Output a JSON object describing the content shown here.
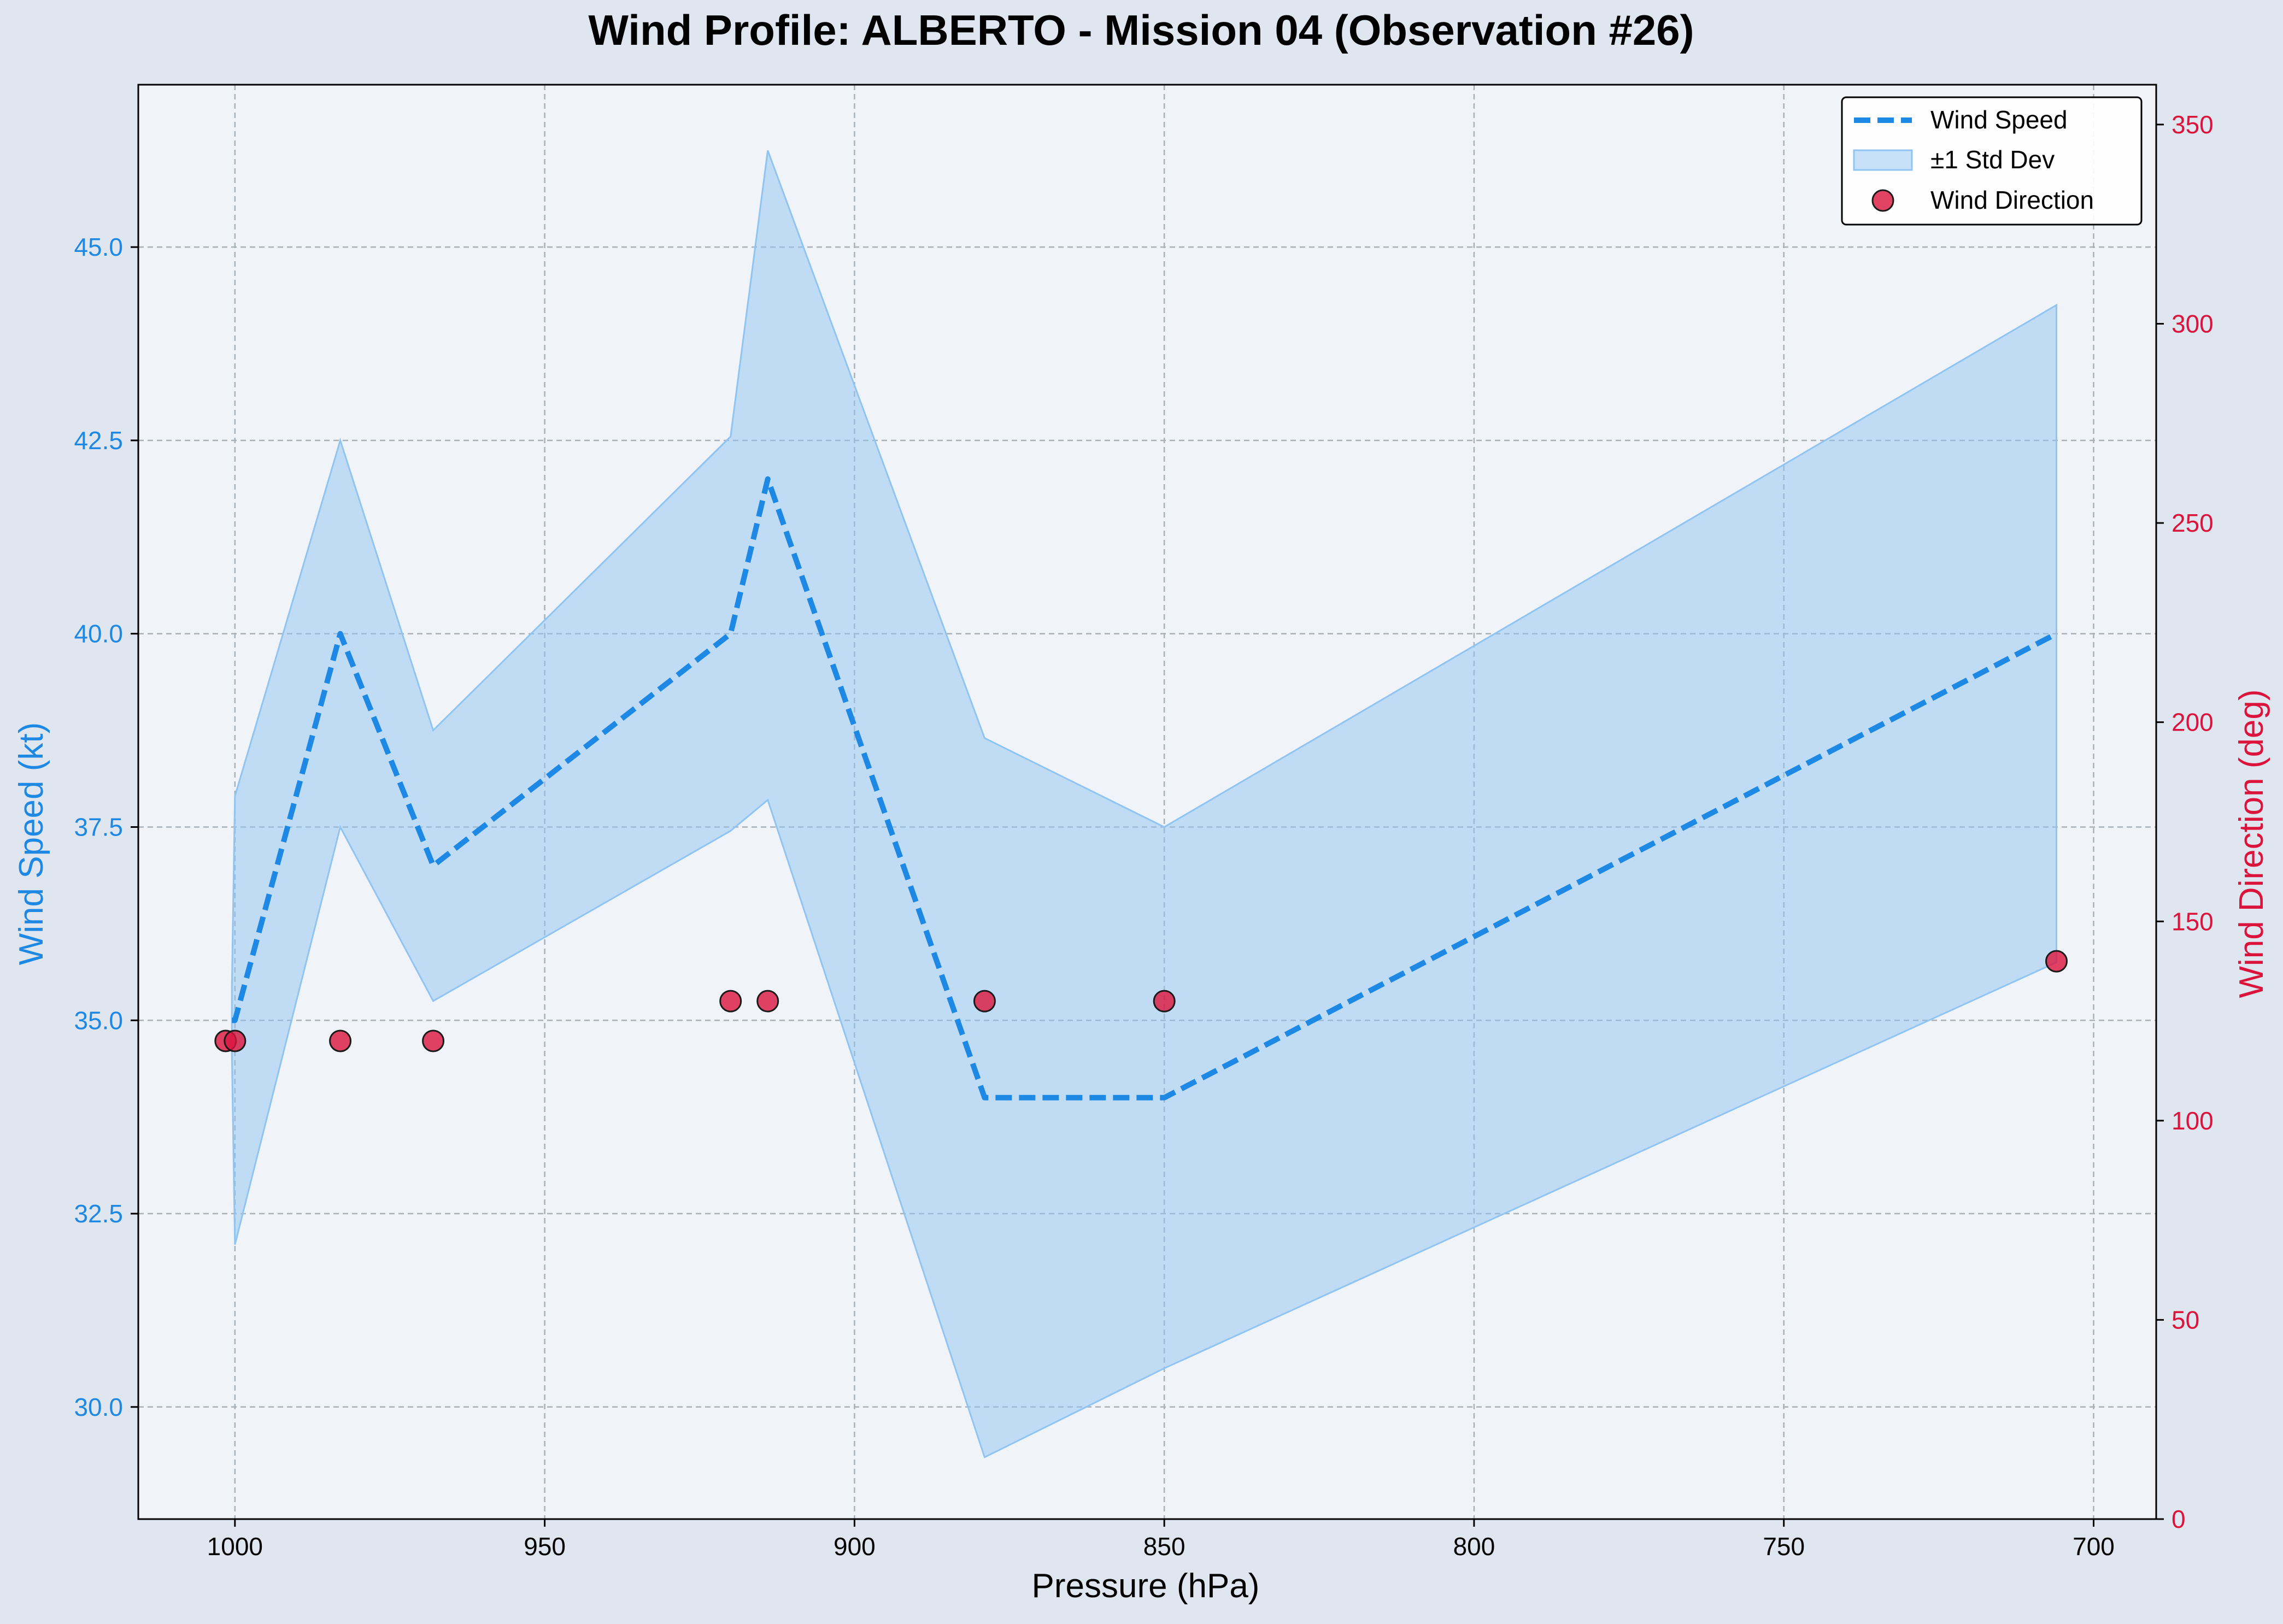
{
  "chart_data": {
    "type": "line",
    "title": "Wind Profile: ALBERTO - Mission 04 (Observation #26)",
    "xlabel": "Pressure (hPa)",
    "ylabel_left": "Wind Speed (kt)",
    "ylabel_right": "Wind Direction (deg)",
    "x_inverted": true,
    "xlim": [
      1015.6,
      689.9
    ],
    "ylim_left": [
      28.55,
      47.1
    ],
    "ylim_right": [
      0,
      360
    ],
    "x_ticks": [
      1000,
      950,
      900,
      850,
      800,
      750,
      700
    ],
    "y_ticks_left": [
      30.0,
      32.5,
      35.0,
      37.5,
      40.0,
      42.5,
      45.0
    ],
    "y_ticks_right": [
      0,
      50,
      100,
      150,
      200,
      250,
      300,
      350
    ],
    "grid": true,
    "legend_position": "top-right",
    "colors": {
      "wind_speed": "#1e88e5",
      "std_band": "#90c4f2",
      "wind_direction": "#dc143c",
      "background": "#e0e6ef",
      "plot_background": "#f0f4f9"
    },
    "series": [
      {
        "name": "Wind Speed",
        "style": "dashed line",
        "x": [
          1000.5,
          1000,
          983,
          968,
          920,
          914,
          879,
          850,
          706
        ],
        "values": [
          35.0,
          35.0,
          40.0,
          37.0,
          40.0,
          42.0,
          34.0,
          34.0,
          40.0
        ]
      },
      {
        "name": "±1 Std Dev",
        "style": "band",
        "x": [
          1000.5,
          1000,
          983,
          968,
          920,
          914,
          879,
          850,
          706
        ],
        "upper": [
          35.4,
          37.9,
          42.5,
          38.75,
          42.55,
          46.25,
          38.65,
          37.5,
          44.25
        ],
        "lower": [
          34.6,
          32.1,
          37.5,
          35.25,
          37.45,
          37.85,
          29.35,
          30.5,
          35.75
        ]
      },
      {
        "name": "Wind Direction",
        "style": "scatter",
        "axis": "right",
        "x": [
          1001.5,
          1000,
          983,
          968,
          920,
          914,
          879,
          850,
          706
        ],
        "values": [
          120,
          120,
          120,
          120,
          130,
          130,
          130,
          130,
          140
        ]
      }
    ]
  }
}
